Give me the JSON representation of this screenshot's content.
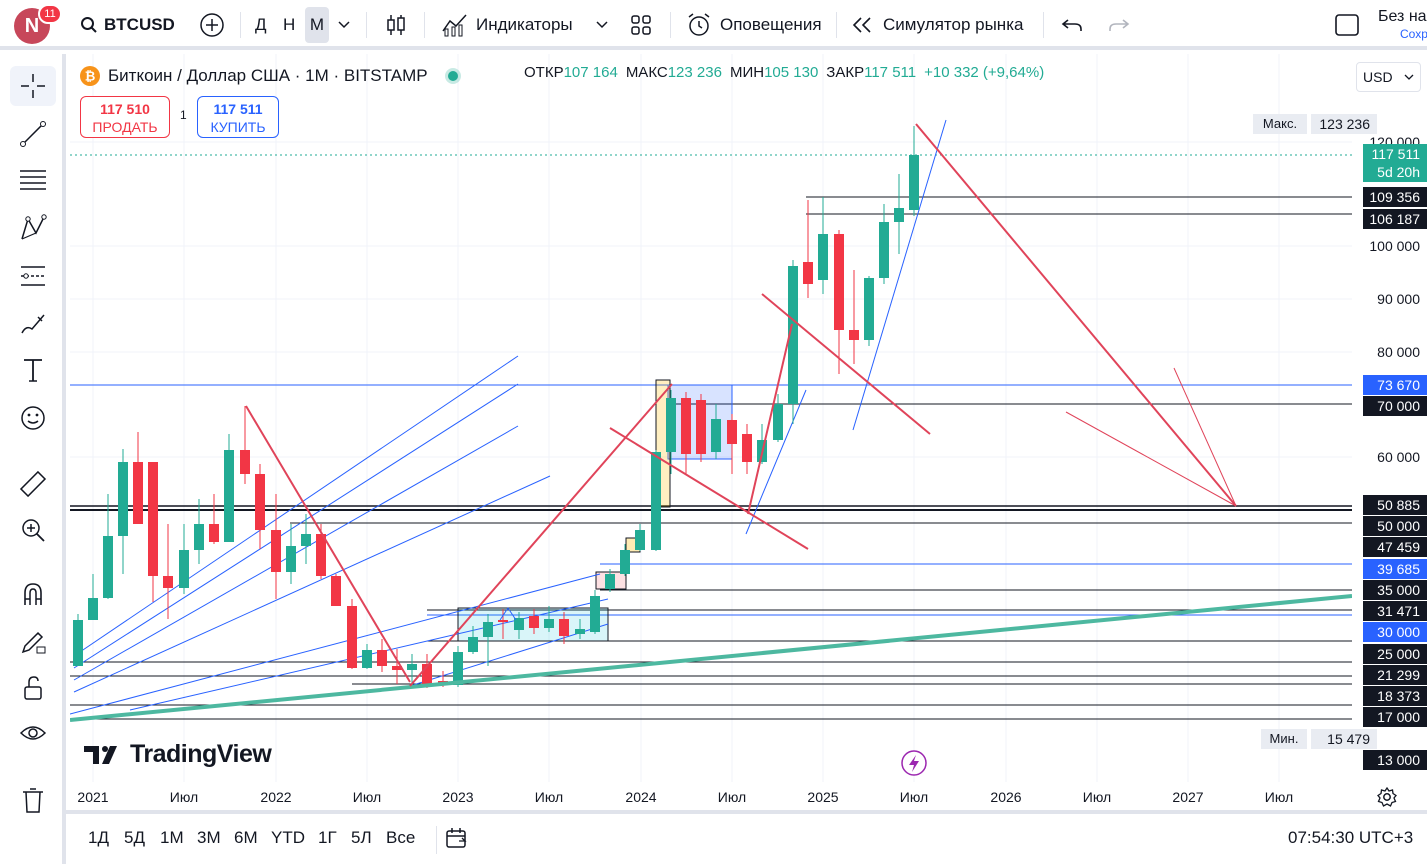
{
  "header": {
    "avatar_letter": "N",
    "notif_count": "11",
    "symbol": "BTCUSD",
    "intervals": [
      "Д",
      "Н",
      "М"
    ],
    "indicators": "Индикаторы",
    "alerts": "Оповещения",
    "replay": "Симулятор рынка",
    "save_title": "Без на",
    "save_sub": "Сохр"
  },
  "legend": {
    "name": "Биткоин / Доллар США · 1М · BITSTAMP",
    "open_label": "ОТКР",
    "open": "107 164",
    "high_label": "МАКС",
    "high": "123 236",
    "low_label": "МИН",
    "low": "105 130",
    "close_label": "ЗАКР",
    "close": "117 511",
    "change": "+10 332 (+9,64%)"
  },
  "trade": {
    "sell_price": "117 510",
    "sell_label": "ПРОДАТЬ",
    "spread": "1",
    "buy_price": "117 511",
    "buy_label": "КУПИТЬ"
  },
  "currency": "USD",
  "price_scale": {
    "max_label": "Макс.",
    "max_value": "123 236",
    "min_label": "Мин.",
    "min_value": "15 479",
    "last_price": "117 511",
    "countdown": "5d 20h",
    "ticks": [
      "120 000",
      "100 000",
      "90 000",
      "80 000",
      "60 000"
    ],
    "levels": [
      "109 356",
      "106 187",
      "73 670",
      "70 000",
      "50 885",
      "50 000",
      "47 459",
      "39 685",
      "35 000",
      "31 471",
      "30 000",
      "25 000",
      "21 299",
      "18 373",
      "17 000",
      "13 000"
    ]
  },
  "time_axis": [
    "2021",
    "Июл",
    "2022",
    "Июл",
    "2023",
    "Июл",
    "2024",
    "Июл",
    "2025",
    "Июл",
    "2026",
    "Июл",
    "2027",
    "Июл"
  ],
  "bottom": {
    "ranges": [
      "1Д",
      "5Д",
      "1М",
      "3М",
      "6М",
      "YTD",
      "1Г",
      "5Л",
      "Все"
    ],
    "clock": "07:54:30 UTC+3"
  },
  "watermark": "TradingView",
  "colors": {
    "up": "#22ab94",
    "down": "#f23645",
    "trend": "#e0445a",
    "channel": "#2962ff"
  }
}
